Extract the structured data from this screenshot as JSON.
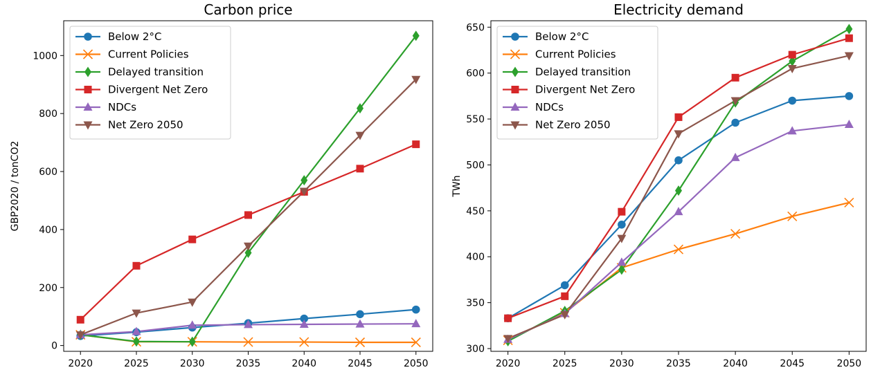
{
  "chart_data": [
    {
      "type": "line",
      "title": "Carbon price",
      "xlabel": "",
      "ylabel": "GBP2020 / tonCO2",
      "x": [
        2020,
        2025,
        2030,
        2035,
        2040,
        2045,
        2050
      ],
      "xticks": [
        "2020",
        "2025",
        "2030",
        "2035",
        "2040",
        "2045",
        "2050"
      ],
      "xlim": [
        2018.5,
        2051.5
      ],
      "ylim": [
        -20,
        1120
      ],
      "yticks": [
        "0",
        "200",
        "400",
        "600",
        "800",
        "1000"
      ],
      "grid": false,
      "legend": "upper-left",
      "series": [
        {
          "name": "Below 2°C",
          "color": "#1f77b4",
          "marker": "circle",
          "values": [
            33,
            46,
            62,
            77,
            93,
            108,
            124
          ]
        },
        {
          "name": "Current Policies",
          "color": "#ff7f0e",
          "marker": "x",
          "values": [
            37,
            13,
            13,
            12,
            12,
            11,
            11
          ]
        },
        {
          "name": "Delayed transition",
          "color": "#2ca02c",
          "marker": "diamond",
          "values": [
            37,
            14,
            13,
            320,
            570,
            818,
            1068
          ]
        },
        {
          "name": "Divergent Net Zero",
          "color": "#d62728",
          "marker": "square",
          "values": [
            89,
            275,
            366,
            450,
            530,
            610,
            694
          ]
        },
        {
          "name": "NDCs",
          "color": "#9467bd",
          "marker": "triangle-up",
          "values": [
            37,
            48,
            70,
            72,
            73,
            74,
            75
          ]
        },
        {
          "name": "Net Zero 2050",
          "color": "#8c564b",
          "marker": "triangle-down",
          "values": [
            37,
            112,
            150,
            343,
            532,
            725,
            918
          ]
        }
      ]
    },
    {
      "type": "line",
      "title": "Electricity demand",
      "xlabel": "",
      "ylabel": "TWh",
      "x": [
        2020,
        2025,
        2030,
        2035,
        2040,
        2045,
        2050
      ],
      "xticks": [
        "2020",
        "2025",
        "2030",
        "2035",
        "2040",
        "2045",
        "2050"
      ],
      "xlim": [
        2018.5,
        2051.5
      ],
      "ylim": [
        297,
        657
      ],
      "yticks": [
        "300",
        "350",
        "400",
        "450",
        "500",
        "550",
        "600",
        "650"
      ],
      "grid": false,
      "legend": "upper-left",
      "series": [
        {
          "name": "Below 2°C",
          "color": "#1f77b4",
          "marker": "circle",
          "values": [
            333,
            369,
            435,
            505,
            546,
            570,
            575
          ]
        },
        {
          "name": "Current Policies",
          "color": "#ff7f0e",
          "marker": "x",
          "values": [
            309,
            339,
            388,
            408,
            425,
            444,
            459
          ]
        },
        {
          "name": "Delayed transition",
          "color": "#2ca02c",
          "marker": "diamond",
          "values": [
            308,
            341,
            386,
            472,
            568,
            613,
            648
          ]
        },
        {
          "name": "Divergent Net Zero",
          "color": "#d62728",
          "marker": "square",
          "values": [
            333,
            357,
            449,
            552,
            595,
            620,
            638
          ]
        },
        {
          "name": "NDCs",
          "color": "#9467bd",
          "marker": "triangle-up",
          "values": [
            310,
            338,
            394,
            449,
            508,
            537,
            544
          ]
        },
        {
          "name": "Net Zero 2050",
          "color": "#8c564b",
          "marker": "triangle-down",
          "values": [
            311,
            337,
            420,
            534,
            570,
            605,
            619
          ]
        }
      ]
    }
  ]
}
